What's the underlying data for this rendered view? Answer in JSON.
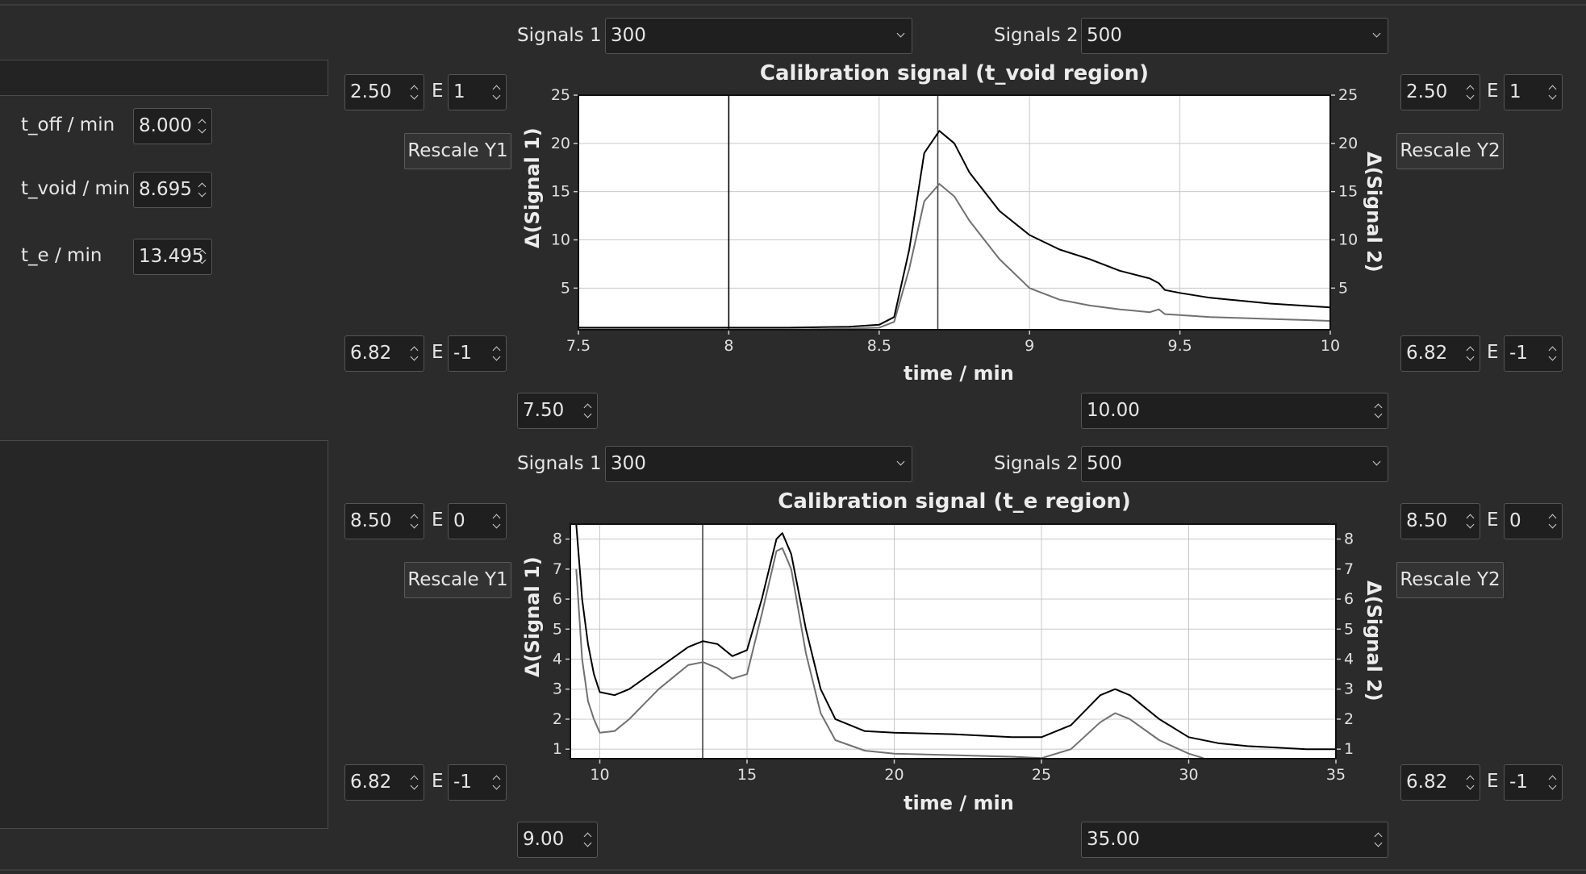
{
  "left_panel": {
    "t_off_label": "t_off / min",
    "t_off_value": "8.000",
    "t_void_label": "t_void / min",
    "t_void_value": "8.695",
    "t_e_label": "t_e / min",
    "t_e_value": "13.495"
  },
  "top": {
    "signals1_label": "Signals 1",
    "signals1_value": "300",
    "signals2_label": "Signals 2",
    "signals2_value": "500",
    "y1_max_mantissa": "2.50",
    "y1_max_exp": "1",
    "y1_min_mantissa": "6.82",
    "y1_min_exp": "-1",
    "y2_max_mantissa": "2.50",
    "y2_max_exp": "1",
    "y2_min_mantissa": "6.82",
    "y2_min_exp": "-1",
    "e_label": "E",
    "rescale_y1": "Rescale Y1",
    "rescale_y2": "Rescale Y2",
    "x_min": "7.50",
    "x_max": "10.00"
  },
  "bottom": {
    "signals1_label": "Signals 1",
    "signals1_value": "300",
    "signals2_label": "Signals 2",
    "signals2_value": "500",
    "y1_max_mantissa": "8.50",
    "y1_max_exp": "0",
    "y1_min_mantissa": "6.82",
    "y1_min_exp": "-1",
    "y2_max_mantissa": "8.50",
    "y2_max_exp": "0",
    "y2_min_mantissa": "6.82",
    "y2_min_exp": "-1",
    "e_label": "E",
    "rescale_y1": "Rescale Y1",
    "rescale_y2": "Rescale Y2",
    "x_min": "9.00",
    "x_max": "35.00"
  },
  "chart_data": [
    {
      "type": "line",
      "title": "Calibration signal (t_void region)",
      "xlabel": "time / min",
      "ylabel": "Δ(Signal 1)",
      "ylabel_right": "Δ(Signal 2)",
      "xlim": [
        7.5,
        10.0
      ],
      "ylim": [
        0.682,
        25
      ],
      "x_ticks": [
        "7.5",
        "8",
        "8.5",
        "9",
        "9.5",
        "10"
      ],
      "y_ticks": [
        "5",
        "10",
        "15",
        "20",
        "25"
      ],
      "y_ticks_right": [
        "5",
        "10",
        "15",
        "20",
        "25"
      ],
      "grid": true,
      "vlines": [
        8.0,
        8.695
      ],
      "series": [
        {
          "color": "#000000",
          "x": [
            7.5,
            7.8,
            8.0,
            8.2,
            8.4,
            8.5,
            8.55,
            8.6,
            8.65,
            8.7,
            8.75,
            8.8,
            8.9,
            9.0,
            9.1,
            9.2,
            9.3,
            9.4,
            9.43,
            9.45,
            9.5,
            9.6,
            9.7,
            9.8,
            9.9,
            10.0
          ],
          "values": [
            0.9,
            0.9,
            0.9,
            0.9,
            1.0,
            1.2,
            2.0,
            9.0,
            19.0,
            21.3,
            20.0,
            17.0,
            13.0,
            10.5,
            9.0,
            8.0,
            6.8,
            6.0,
            5.5,
            4.8,
            4.5,
            4.0,
            3.7,
            3.4,
            3.2,
            3.0
          ]
        },
        {
          "color": "#707070",
          "x": [
            7.5,
            7.8,
            8.0,
            8.2,
            8.4,
            8.5,
            8.55,
            8.6,
            8.65,
            8.7,
            8.75,
            8.8,
            8.9,
            9.0,
            9.1,
            9.2,
            9.3,
            9.4,
            9.43,
            9.45,
            9.5,
            9.6,
            9.7,
            9.8,
            9.9,
            10.0
          ],
          "values": [
            0.7,
            0.7,
            0.7,
            0.7,
            0.8,
            0.9,
            1.5,
            7.0,
            14.0,
            15.8,
            14.5,
            12.0,
            8.0,
            5.0,
            3.8,
            3.2,
            2.8,
            2.5,
            2.8,
            2.3,
            2.2,
            2.0,
            1.9,
            1.8,
            1.7,
            1.6
          ]
        }
      ]
    },
    {
      "type": "line",
      "title": "Calibration signal (t_e region)",
      "xlabel": "time / min",
      "ylabel": "Δ(Signal 1)",
      "ylabel_right": "Δ(Signal 2)",
      "xlim": [
        9.0,
        35.0
      ],
      "ylim": [
        0.682,
        8.5
      ],
      "x_ticks": [
        "10",
        "15",
        "20",
        "25",
        "30",
        "35"
      ],
      "y_ticks": [
        "1",
        "2",
        "3",
        "4",
        "5",
        "6",
        "7",
        "8"
      ],
      "y_ticks_right": [
        "1",
        "2",
        "3",
        "4",
        "5",
        "6",
        "7",
        "8"
      ],
      "grid": true,
      "vlines": [
        13.495
      ],
      "series": [
        {
          "color": "#000000",
          "x": [
            9.2,
            9.4,
            9.6,
            9.8,
            10.0,
            10.5,
            11.0,
            12.0,
            13.0,
            13.5,
            14.0,
            14.5,
            15.0,
            15.5,
            16.0,
            16.2,
            16.5,
            17.0,
            17.5,
            18.0,
            19.0,
            20.0,
            22.0,
            24.0,
            25.0,
            26.0,
            27.0,
            27.5,
            28.0,
            29.0,
            30.0,
            31.0,
            32.0,
            33.0,
            34.0,
            35.0
          ],
          "values": [
            8.5,
            6.0,
            4.5,
            3.5,
            2.9,
            2.8,
            3.0,
            3.7,
            4.4,
            4.6,
            4.5,
            4.1,
            4.3,
            6.0,
            8.0,
            8.2,
            7.5,
            5.0,
            3.0,
            2.0,
            1.6,
            1.55,
            1.5,
            1.4,
            1.4,
            1.8,
            2.8,
            3.0,
            2.8,
            2.0,
            1.4,
            1.2,
            1.1,
            1.05,
            1.0,
            1.0
          ]
        },
        {
          "color": "#707070",
          "x": [
            9.2,
            9.4,
            9.6,
            9.8,
            10.0,
            10.5,
            11.0,
            12.0,
            13.0,
            13.5,
            14.0,
            14.5,
            15.0,
            15.5,
            16.0,
            16.2,
            16.5,
            17.0,
            17.5,
            18.0,
            19.0,
            20.0,
            22.0,
            24.0,
            25.0,
            26.0,
            27.0,
            27.5,
            28.0,
            29.0,
            30.0,
            30.5
          ],
          "values": [
            7.0,
            4.0,
            2.6,
            2.0,
            1.55,
            1.6,
            2.0,
            3.0,
            3.8,
            3.9,
            3.7,
            3.35,
            3.5,
            5.5,
            7.6,
            7.7,
            7.0,
            4.2,
            2.2,
            1.3,
            0.95,
            0.85,
            0.8,
            0.75,
            0.7,
            1.0,
            1.9,
            2.2,
            2.0,
            1.3,
            0.85,
            0.7
          ]
        }
      ]
    }
  ]
}
